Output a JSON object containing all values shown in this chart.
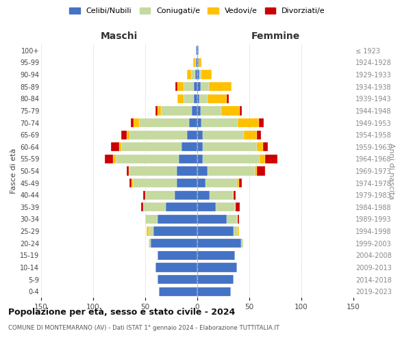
{
  "age_groups": [
    "0-4",
    "5-9",
    "10-14",
    "15-19",
    "20-24",
    "25-29",
    "30-34",
    "35-39",
    "40-44",
    "45-49",
    "50-54",
    "55-59",
    "60-64",
    "65-69",
    "70-74",
    "75-79",
    "80-84",
    "85-89",
    "90-94",
    "95-99",
    "100+"
  ],
  "birth_years": [
    "2019-2023",
    "2014-2018",
    "2009-2013",
    "2004-2008",
    "1999-2003",
    "1994-1998",
    "1989-1993",
    "1984-1988",
    "1979-1983",
    "1974-1978",
    "1969-1973",
    "1964-1968",
    "1959-1963",
    "1954-1958",
    "1949-1953",
    "1944-1948",
    "1939-1943",
    "1934-1938",
    "1929-1933",
    "1924-1928",
    "≤ 1923"
  ],
  "maschi": {
    "celibi": [
      37,
      38,
      40,
      38,
      45,
      42,
      38,
      30,
      22,
      20,
      20,
      18,
      15,
      10,
      8,
      5,
      3,
      3,
      2,
      1,
      1
    ],
    "coniugati": [
      0,
      0,
      0,
      0,
      2,
      5,
      12,
      22,
      28,
      42,
      45,
      60,
      58,
      55,
      48,
      30,
      10,
      10,
      4,
      1,
      0
    ],
    "vedovi": [
      0,
      0,
      0,
      0,
      0,
      2,
      0,
      0,
      0,
      1,
      1,
      3,
      2,
      3,
      5,
      3,
      6,
      6,
      4,
      2,
      0
    ],
    "divorziati": [
      0,
      0,
      0,
      0,
      0,
      0,
      0,
      2,
      2,
      2,
      2,
      8,
      8,
      5,
      3,
      2,
      0,
      2,
      0,
      0,
      0
    ]
  },
  "femmine": {
    "nubili": [
      32,
      35,
      38,
      36,
      42,
      35,
      28,
      18,
      12,
      8,
      10,
      5,
      5,
      5,
      4,
      3,
      2,
      3,
      2,
      1,
      1
    ],
    "coniugate": [
      0,
      0,
      0,
      0,
      2,
      4,
      10,
      18,
      22,
      30,
      45,
      55,
      52,
      40,
      35,
      20,
      8,
      8,
      2,
      0,
      0
    ],
    "vedove": [
      0,
      0,
      0,
      0,
      0,
      1,
      1,
      1,
      1,
      2,
      2,
      5,
      6,
      12,
      20,
      18,
      18,
      22,
      10,
      3,
      0
    ],
    "divorziate": [
      0,
      0,
      0,
      0,
      0,
      0,
      1,
      4,
      2,
      3,
      8,
      12,
      5,
      4,
      5,
      2,
      2,
      0,
      0,
      0,
      0
    ]
  },
  "colors": {
    "celibi": "#4472c4",
    "coniugati": "#c5d9a0",
    "vedovi": "#ffc000",
    "divorziati": "#cc0000"
  },
  "title": "Popolazione per età, sesso e stato civile - 2024",
  "subtitle": "COMUNE DI MONTEMARANO (AV) - Dati ISTAT 1° gennaio 2024 - Elaborazione TUTTITALIA.IT",
  "ylabel_left": "Fasce di età",
  "ylabel_right": "Anni di nascita",
  "xlabel_maschi": "Maschi",
  "xlabel_femmine": "Femmine",
  "xlim": 150,
  "xticks": [
    150,
    100,
    50,
    0,
    50,
    100,
    150
  ],
  "legend_labels": [
    "Celibi/Nubili",
    "Coniugati/e",
    "Vedovi/e",
    "Divorziati/e"
  ],
  "background_color": "#ffffff",
  "grid_color": "#cccccc"
}
